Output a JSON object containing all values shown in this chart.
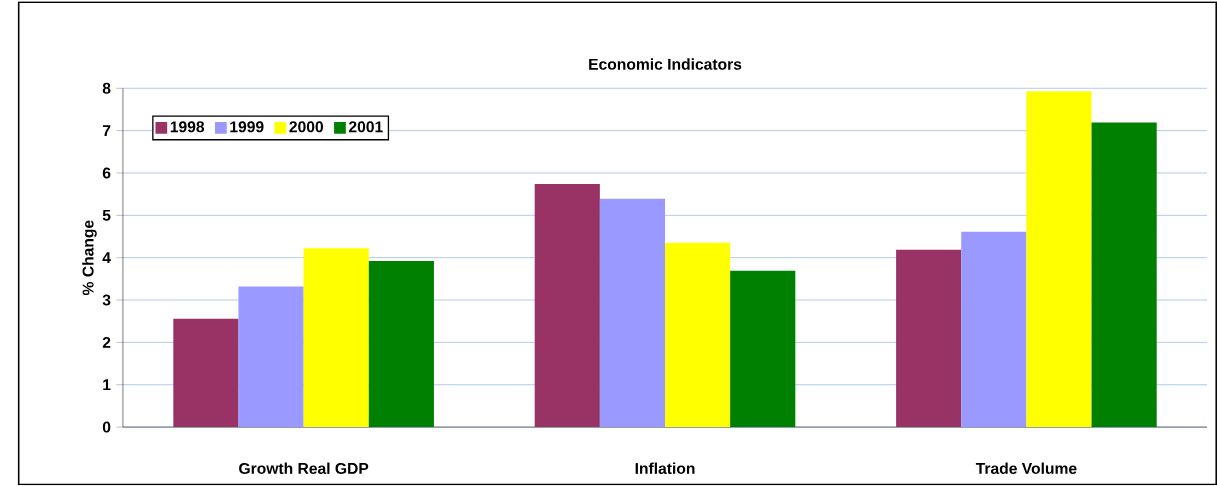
{
  "chart_data": {
    "type": "bar",
    "title": "Economic Indicators",
    "ylabel": "% Change",
    "categories": [
      "Growth Real GDP",
      "Inflation",
      "Trade Volume"
    ],
    "series": [
      {
        "name": "1998",
        "color": "#993366",
        "values": [
          2.56,
          5.74,
          4.19
        ]
      },
      {
        "name": "1999",
        "color": "#9999ff",
        "values": [
          3.32,
          5.39,
          4.61
        ]
      },
      {
        "name": "2000",
        "color": "#ffff00",
        "values": [
          4.22,
          4.35,
          7.93
        ]
      },
      {
        "name": "2001",
        "color": "#008000",
        "values": [
          3.92,
          3.69,
          7.19
        ]
      }
    ],
    "ylim": [
      0,
      8
    ],
    "yticks": [
      0,
      1,
      2,
      3,
      4,
      5,
      6,
      7,
      8
    ],
    "grid": "y",
    "legend": "top left"
  }
}
